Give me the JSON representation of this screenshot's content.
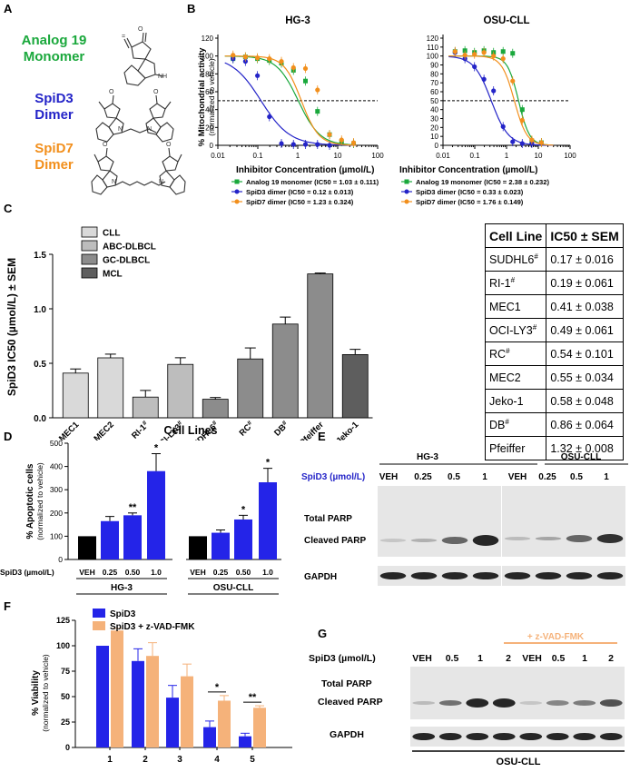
{
  "panel_A": {
    "label": "A",
    "compounds": [
      {
        "line1": "Analog 19",
        "line2": "Monomer",
        "color": "#1aa83c"
      },
      {
        "line1": "SpiD3",
        "line2": "Dimer",
        "color": "#2424c8"
      },
      {
        "line1": "SpiD7",
        "line2": "Dimer",
        "color": "#f28f1c"
      }
    ]
  },
  "panel_B": {
    "label": "B",
    "ylabel": "% Mitochondrial activity",
    "ylabel2": "(normalized to vehicle)",
    "xlabel": "Inhibitor Concentration (µmol/L)",
    "charts": [
      {
        "title": "HG-3",
        "legend": [
          "Analog 19 monomer (IC50 = 1.03 ± 0.111)",
          "SpiD3 dimer (IC50 = 0.12 ± 0.013)",
          "SpiD7 dimer (IC50 = 1.23 ± 0.324)"
        ]
      },
      {
        "title": "OSU-CLL",
        "legend": [
          "Analog 19 monomer (IC50 = 2.38 ± 0.232)",
          "SpiD3 dimer (IC50 = 0.33 ± 0.023)",
          "SpiD7 dimer (IC50 = 1.76 ± 0.149)"
        ]
      }
    ]
  },
  "panel_C": {
    "label": "C",
    "ylabel": "SpiD3 IC50 (µmol/L) ± SEM",
    "xlabel": "Cell Lines",
    "legend": [
      {
        "name": "CLL",
        "color": "#d9d9d9"
      },
      {
        "name": "ABC-DLBCL",
        "color": "#bdbdbd"
      },
      {
        "name": "GC-DLBCL",
        "color": "#8c8c8c"
      },
      {
        "name": "MCL",
        "color": "#5e5e5e"
      }
    ],
    "table": {
      "headers": [
        "Cell Line",
        "IC50 ± SEM"
      ],
      "rows": [
        [
          "SUDHL6#",
          "0.17 ± 0.016"
        ],
        [
          "RI-1#",
          "0.19 ± 0.061"
        ],
        [
          "MEC1",
          "0.41 ± 0.038"
        ],
        [
          "OCI-LY3#",
          "0.49 ± 0.061"
        ],
        [
          "RC#",
          "0.54 ± 0.101"
        ],
        [
          "MEC2",
          "0.55 ± 0.034"
        ],
        [
          "Jeko-1",
          "0.58 ± 0.048"
        ],
        [
          "DB#",
          "0.86 ± 0.064"
        ],
        [
          "Pfeiffer",
          "1.32 ± 0.008"
        ]
      ]
    }
  },
  "panel_D": {
    "label": "D",
    "ylabel": "% Apoptotic cells",
    "ylabel2": "(normalized to vehicle)",
    "row_label": "SpiD3 (µmol/L)",
    "groups": [
      "HG-3",
      "OSU-CLL"
    ],
    "doses": [
      "VEH",
      "0.25",
      "0.50",
      "1.0"
    ]
  },
  "panel_E": {
    "label": "E",
    "row_label": "SpiD3 (µmol/L)",
    "groups": [
      "HG-3",
      "OSU-CLL"
    ],
    "lanes": [
      "VEH",
      "0.25",
      "0.5",
      "1"
    ],
    "bands": [
      "Total PARP",
      "Cleaved PARP",
      "GAPDH"
    ]
  },
  "panel_F": {
    "label": "F",
    "ylabel": "% Viability",
    "ylabel2": "(normalized to vehicle)"
  },
  "panel_G": {
    "label": "G",
    "row_label": "SpiD3 (µmol/L)",
    "treatment": "+ z-VAD-FMK",
    "lanes": [
      "VEH",
      "0.5",
      "1",
      "2",
      "VEH",
      "0.5",
      "1",
      "2"
    ],
    "bands": [
      "Total PARP",
      "Cleaved PARP",
      "GAPDH"
    ],
    "cell_line": "OSU-CLL"
  },
  "chart_data": [
    {
      "type": "scatter",
      "panel": "B-left",
      "title": "HG-3",
      "xlabel": "Inhibitor Concentration (µmol/L)",
      "ylabel": "% Mitochondrial activity (normalized to vehicle)",
      "xscale": "log",
      "xlim": [
        0.01,
        100
      ],
      "ylim": [
        0,
        120
      ],
      "xticks": [
        "0.01",
        "0.1",
        "1",
        "10",
        "100"
      ],
      "yticks": [
        0,
        20,
        40,
        60,
        80,
        100,
        120
      ],
      "reference_line": 50,
      "series": [
        {
          "name": "Analog 19 monomer",
          "color": "#1aa83c",
          "ic50": 1.03,
          "hill": 1.6,
          "x": [
            0.024,
            0.049,
            0.098,
            0.195,
            0.39,
            0.78,
            1.56,
            3.125,
            6.25,
            12.5,
            25
          ],
          "y": [
            97,
            99,
            97,
            95,
            92,
            84,
            72,
            38,
            12,
            4,
            2
          ]
        },
        {
          "name": "SpiD3 dimer",
          "color": "#2424c8",
          "ic50": 0.12,
          "hill": 1.2,
          "x": [
            0.024,
            0.049,
            0.098,
            0.195,
            0.39,
            0.78,
            1.56,
            3.125,
            6.25
          ],
          "y": [
            97,
            94,
            78,
            32,
            2,
            1,
            1,
            1,
            0
          ]
        },
        {
          "name": "SpiD7 dimer",
          "color": "#f28f1c",
          "ic50": 1.23,
          "hill": 2.0,
          "x": [
            0.024,
            0.049,
            0.098,
            0.195,
            0.39,
            0.78,
            1.56,
            3.125,
            6.25,
            12.5,
            25
          ],
          "y": [
            101,
            99,
            98,
            97,
            94,
            87,
            86,
            62,
            12,
            6,
            3
          ]
        }
      ]
    },
    {
      "type": "scatter",
      "panel": "B-right",
      "title": "OSU-CLL",
      "xlabel": "Inhibitor Concentration (µmol/L)",
      "ylabel": "% Mitochondrial activity (normalized to vehicle)",
      "xscale": "log",
      "xlim": [
        0.01,
        100
      ],
      "ylim": [
        0,
        120
      ],
      "xticks": [
        "0.01",
        "0.1",
        "1",
        "10",
        "100"
      ],
      "yticks": [
        0,
        10,
        20,
        30,
        40,
        50,
        60,
        70,
        80,
        90,
        100,
        110,
        120
      ],
      "reference_line": 50,
      "series": [
        {
          "name": "Analog 19 monomer",
          "color": "#1aa83c",
          "ic50": 2.38,
          "hill": 2.5,
          "x": [
            0.024,
            0.049,
            0.098,
            0.195,
            0.39,
            0.78,
            1.56,
            3.125,
            6.25,
            12.5
          ],
          "y": [
            105,
            106,
            104,
            106,
            104,
            105,
            103,
            40,
            5,
            3
          ]
        },
        {
          "name": "SpiD3 dimer",
          "color": "#2424c8",
          "ic50": 0.33,
          "hill": 1.6,
          "x": [
            0.024,
            0.049,
            0.098,
            0.195,
            0.39,
            0.78,
            1.56,
            3.125,
            6.25
          ],
          "y": [
            104,
            97,
            88,
            74,
            61,
            21,
            4,
            2,
            2
          ]
        },
        {
          "name": "SpiD7 dimer",
          "color": "#f28f1c",
          "ic50": 1.76,
          "hill": 2.2,
          "x": [
            0.024,
            0.049,
            0.098,
            0.195,
            0.39,
            0.78,
            1.56,
            3.125,
            6.25,
            12.5
          ],
          "y": [
            105,
            101,
            102,
            104,
            100,
            97,
            72,
            28,
            6,
            3
          ]
        }
      ]
    },
    {
      "type": "bar",
      "panel": "C",
      "title": "",
      "ylabel": "SpiD3 IC50 (µmol/L) ± SEM",
      "xlabel": "Cell Lines",
      "ylim": [
        0,
        1.5
      ],
      "yticks": [
        "0.0",
        "0.5",
        "1.0",
        "1.5"
      ],
      "categories": [
        "MEC1",
        "MEC2",
        "RI-1#",
        "OCI-LY3#",
        "SUDHL6#",
        "RC#",
        "DB#",
        "Pfeiffer",
        "Jeko-1"
      ],
      "values": [
        0.41,
        0.55,
        0.19,
        0.49,
        0.17,
        0.54,
        0.86,
        1.32,
        0.58
      ],
      "errors": [
        0.038,
        0.034,
        0.061,
        0.061,
        0.016,
        0.101,
        0.064,
        0.008,
        0.048
      ],
      "groups": [
        "CLL",
        "CLL",
        "ABC-DLBCL",
        "ABC-DLBCL",
        "GC-DLBCL",
        "GC-DLBCL",
        "GC-DLBCL",
        "GC-DLBCL",
        "MCL"
      ]
    },
    {
      "type": "bar",
      "panel": "D",
      "ylabel": "% Apoptotic cells (normalized to vehicle)",
      "ylim": [
        0,
        500
      ],
      "yticks": [
        0,
        100,
        200,
        300,
        400,
        500
      ],
      "categories": [
        "VEH",
        "0.25",
        "0.50",
        "1.0",
        "VEH",
        "0.25",
        "0.50",
        "1.0"
      ],
      "groups": [
        "HG-3",
        "HG-3",
        "HG-3",
        "HG-3",
        "OSU-CLL",
        "OSU-CLL",
        "OSU-CLL",
        "OSU-CLL"
      ],
      "values": [
        100,
        165,
        190,
        380,
        100,
        115,
        172,
        332
      ],
      "errors": [
        0,
        20,
        10,
        75,
        0,
        12,
        18,
        60
      ],
      "annotations": [
        "",
        "",
        "**",
        "*",
        "",
        "",
        "*",
        "*"
      ]
    },
    {
      "type": "bar",
      "panel": "F",
      "ylabel": "% Viability (normalized to vehicle)",
      "ylim": [
        0,
        125
      ],
      "yticks": [
        0,
        25,
        50,
        75,
        100,
        125
      ],
      "categories": [
        "1",
        "2",
        "3",
        "4",
        "5"
      ],
      "series": [
        {
          "name": "SpiD3",
          "color": "#2424e8",
          "values": [
            100,
            85,
            49,
            20,
            11
          ],
          "errors": [
            0,
            12,
            12,
            6,
            3
          ]
        },
        {
          "name": "SpiD3 + z-VAD-FMK",
          "color": "#f5b27a",
          "values": [
            115,
            90,
            70,
            46,
            39
          ],
          "errors": [
            2,
            13,
            12,
            5,
            2
          ]
        }
      ],
      "significance": [
        {
          "category": "4",
          "label": "*"
        },
        {
          "category": "5",
          "label": "**"
        }
      ]
    }
  ]
}
